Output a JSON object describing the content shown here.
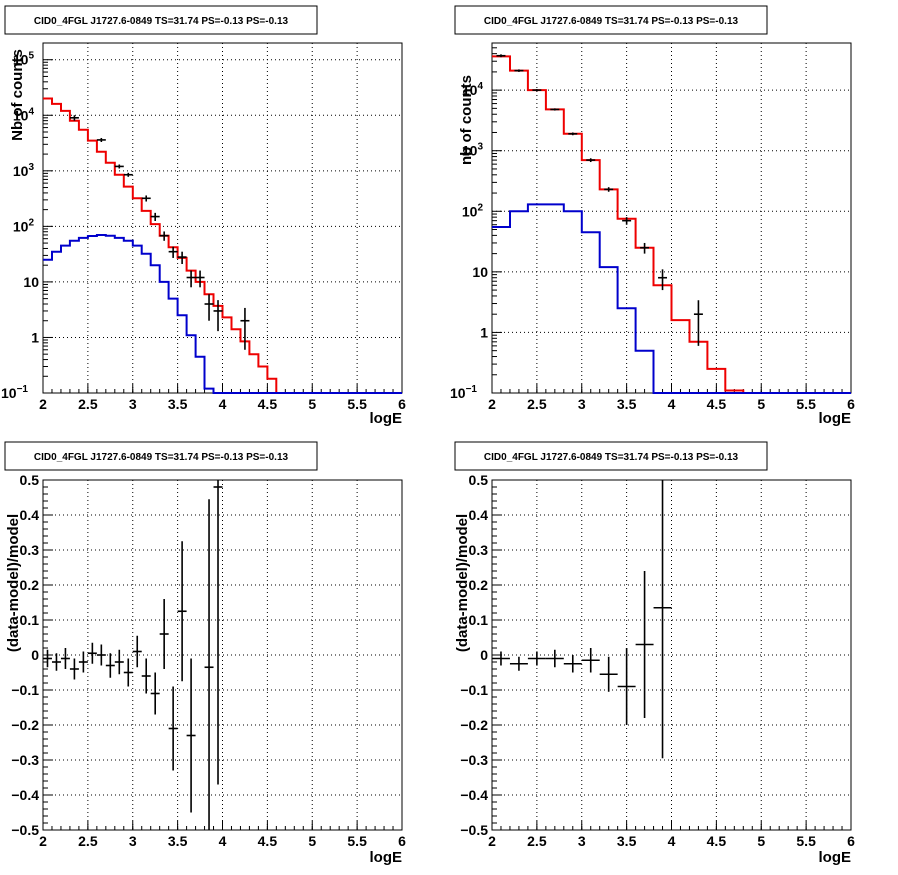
{
  "colors": {
    "data": "#000000",
    "model": "#ee0000",
    "component": "#0000cc",
    "grid": "#000000"
  },
  "chart_data": [
    {
      "type": "line",
      "title": "CID0_4FGL J1727.6-0849 TS=31.74 PS=-0.13 PS=-0.13",
      "xlabel": "logE",
      "ylabel": "Nb of counts",
      "xlim": [
        2,
        6
      ],
      "ylim": [
        0.1,
        200000
      ],
      "yscale": "log",
      "grid": true,
      "x_ticks": [
        "2",
        "2.5",
        "3",
        "3.5",
        "4",
        "4.5",
        "5",
        "5.5",
        "6"
      ],
      "y_ticks": [
        {
          "v": 0.1,
          "label": "10",
          "sup": "−1"
        },
        {
          "v": 1,
          "label": "1",
          "sup": ""
        },
        {
          "v": 10,
          "label": "10",
          "sup": ""
        },
        {
          "v": 100,
          "label": "10",
          "sup": "2"
        },
        {
          "v": 1000,
          "label": "10",
          "sup": "3"
        },
        {
          "v": 10000,
          "label": "10",
          "sup": "4"
        },
        {
          "v": 100000,
          "label": "10",
          "sup": "5"
        }
      ],
      "bin_edges": [
        2.0,
        2.1,
        2.2,
        2.3,
        2.4,
        2.5,
        2.6,
        2.7,
        2.8,
        2.9,
        3.0,
        3.1,
        3.2,
        3.3,
        3.4,
        3.5,
        3.6,
        3.7,
        3.8,
        3.9,
        4.0,
        4.1,
        4.2,
        4.3,
        4.4,
        4.5,
        4.6,
        4.7,
        4.8,
        4.9,
        5.0,
        5.1,
        5.2,
        5.3,
        5.4,
        5.5,
        5.6,
        5.7,
        5.8,
        5.9,
        6.0
      ],
      "series": [
        {
          "role": "model",
          "values": [
            20000,
            16000,
            12000,
            8000,
            5500,
            3500,
            2200,
            1400,
            850,
            520,
            320,
            190,
            110,
            68,
            42,
            27,
            16,
            10,
            6,
            3.7,
            2.3,
            1.4,
            0.85,
            0.5,
            0.3,
            0.18,
            0.1,
            0.1,
            0.1,
            0.1,
            0.1,
            0.1,
            0.1,
            0.1,
            0.1,
            0.1,
            0.1,
            0.1,
            0.1,
            0.1
          ]
        },
        {
          "role": "component",
          "values": [
            25,
            35,
            45,
            55,
            62,
            67,
            70,
            68,
            62,
            55,
            45,
            32,
            20,
            10,
            5,
            2.5,
            1.1,
            0.45,
            0.12,
            0.1,
            0.1,
            0.1,
            0.1,
            0.1,
            0.1,
            0.1,
            0.1,
            0.1,
            0.1,
            0.1,
            0.1,
            0.1,
            0.1,
            0.1,
            0.1,
            0.1,
            0.1,
            0.1,
            0.1,
            0.1
          ]
        }
      ],
      "points": [
        {
          "x": 2.35,
          "y": 9000,
          "lo": 8000,
          "hi": 10000
        },
        {
          "x": 2.65,
          "y": 3600,
          "lo": 3300,
          "hi": 3900
        },
        {
          "x": 2.85,
          "y": 1200,
          "lo": 1100,
          "hi": 1300
        },
        {
          "x": 2.95,
          "y": 850,
          "lo": 780,
          "hi": 920
        },
        {
          "x": 3.15,
          "y": 320,
          "lo": 280,
          "hi": 360
        },
        {
          "x": 3.25,
          "y": 150,
          "lo": 125,
          "hi": 175
        },
        {
          "x": 3.35,
          "y": 68,
          "lo": 55,
          "hi": 81
        },
        {
          "x": 3.45,
          "y": 35,
          "lo": 27,
          "hi": 43
        },
        {
          "x": 3.55,
          "y": 28,
          "lo": 21,
          "hi": 35
        },
        {
          "x": 3.65,
          "y": 12,
          "lo": 8,
          "hi": 16
        },
        {
          "x": 3.75,
          "y": 12,
          "lo": 8,
          "hi": 16
        },
        {
          "x": 3.85,
          "y": 4,
          "lo": 2,
          "hi": 6
        },
        {
          "x": 3.95,
          "y": 3,
          "lo": 1.3,
          "hi": 4.7
        },
        {
          "x": 4.25,
          "y": 2,
          "lo": 0.6,
          "hi": 3.4
        }
      ]
    },
    {
      "type": "line",
      "title": "CID0_4FGL J1727.6-0849 TS=31.74 PS=-0.13 PS=-0.13",
      "xlabel": "logE",
      "ylabel": "nb of counts",
      "xlim": [
        2,
        6
      ],
      "ylim": [
        0.1,
        60000
      ],
      "yscale": "log",
      "grid": true,
      "x_ticks": [
        "2",
        "2.5",
        "3",
        "3.5",
        "4",
        "4.5",
        "5",
        "5.5",
        "6"
      ],
      "y_ticks": [
        {
          "v": 0.1,
          "label": "10",
          "sup": "−1"
        },
        {
          "v": 1,
          "label": "1",
          "sup": ""
        },
        {
          "v": 10,
          "label": "10",
          "sup": ""
        },
        {
          "v": 100,
          "label": "10",
          "sup": "2"
        },
        {
          "v": 1000,
          "label": "10",
          "sup": "3"
        },
        {
          "v": 10000,
          "label": "10",
          "sup": "4"
        }
      ],
      "bin_edges": [
        2.0,
        2.2,
        2.4,
        2.6,
        2.8,
        3.0,
        3.2,
        3.4,
        3.6,
        3.8,
        4.0,
        4.2,
        4.4,
        4.6,
        4.8,
        5.0,
        5.2,
        5.4,
        5.6,
        5.8,
        6.0
      ],
      "series": [
        {
          "role": "model",
          "values": [
            36000,
            21000,
            10000,
            4800,
            1900,
            700,
            230,
            75,
            25,
            6,
            1.6,
            0.7,
            0.25,
            0.11,
            0.1,
            0.1,
            0.1,
            0.1,
            0.1,
            0.1
          ]
        },
        {
          "role": "component",
          "values": [
            55,
            100,
            130,
            130,
            100,
            45,
            12,
            2.5,
            0.5,
            0.1,
            0.1,
            0.1,
            0.1,
            0.1,
            0.1,
            0.1,
            0.1,
            0.1,
            0.1,
            0.1
          ]
        }
      ],
      "points": [
        {
          "x": 2.1,
          "y": 37000,
          "lo": 35000,
          "hi": 39000
        },
        {
          "x": 2.3,
          "y": 21000,
          "lo": 20000,
          "hi": 22000
        },
        {
          "x": 2.5,
          "y": 10000,
          "lo": 9600,
          "hi": 10400
        },
        {
          "x": 2.7,
          "y": 4800,
          "lo": 4600,
          "hi": 5000
        },
        {
          "x": 2.9,
          "y": 1900,
          "lo": 1800,
          "hi": 2000
        },
        {
          "x": 3.1,
          "y": 700,
          "lo": 650,
          "hi": 750
        },
        {
          "x": 3.3,
          "y": 230,
          "lo": 210,
          "hi": 250
        },
        {
          "x": 3.5,
          "y": 70,
          "lo": 60,
          "hi": 80
        },
        {
          "x": 3.7,
          "y": 25,
          "lo": 20,
          "hi": 30
        },
        {
          "x": 3.9,
          "y": 8,
          "lo": 5,
          "hi": 11
        },
        {
          "x": 4.3,
          "y": 2,
          "lo": 0.6,
          "hi": 3.4
        }
      ]
    },
    {
      "type": "scatter",
      "title": "CID0_4FGL J1727.6-0849 TS=31.74 PS=-0.13 PS=-0.13",
      "xlabel": "logE",
      "ylabel": "(data-model)/model",
      "xlim": [
        2,
        6
      ],
      "ylim": [
        -0.5,
        0.5
      ],
      "yscale": "linear",
      "grid": true,
      "x_ticks": [
        "2",
        "2.5",
        "3",
        "3.5",
        "4",
        "4.5",
        "5",
        "5.5",
        "6"
      ],
      "y_ticks": [
        {
          "v": -0.5,
          "label": "−0.5"
        },
        {
          "v": -0.4,
          "label": "−0.4"
        },
        {
          "v": -0.3,
          "label": "−0.3"
        },
        {
          "v": -0.2,
          "label": "−0.2"
        },
        {
          "v": -0.1,
          "label": "−0.1"
        },
        {
          "v": 0,
          "label": "0"
        },
        {
          "v": 0.1,
          "label": "0.1"
        },
        {
          "v": 0.2,
          "label": "0.2"
        },
        {
          "v": 0.3,
          "label": "0.3"
        },
        {
          "v": 0.4,
          "label": "0.4"
        },
        {
          "v": 0.5,
          "label": "0.5"
        }
      ],
      "xerr": 0.05,
      "points": [
        {
          "x": 2.05,
          "y": -0.01,
          "err": 0.025
        },
        {
          "x": 2.15,
          "y": -0.02,
          "err": 0.025
        },
        {
          "x": 2.25,
          "y": -0.01,
          "err": 0.03
        },
        {
          "x": 2.35,
          "y": -0.04,
          "err": 0.03
        },
        {
          "x": 2.45,
          "y": -0.02,
          "err": 0.03
        },
        {
          "x": 2.55,
          "y": 0.005,
          "err": 0.03
        },
        {
          "x": 2.65,
          "y": 0.0,
          "err": 0.03
        },
        {
          "x": 2.75,
          "y": -0.03,
          "err": 0.035
        },
        {
          "x": 2.85,
          "y": -0.02,
          "err": 0.035
        },
        {
          "x": 2.95,
          "y": -0.05,
          "err": 0.04
        },
        {
          "x": 3.05,
          "y": 0.01,
          "err": 0.045
        },
        {
          "x": 3.15,
          "y": -0.06,
          "err": 0.05
        },
        {
          "x": 3.25,
          "y": -0.11,
          "err": 0.06
        },
        {
          "x": 3.35,
          "y": 0.06,
          "err": 0.1
        },
        {
          "x": 3.45,
          "y": -0.21,
          "err": 0.12
        },
        {
          "x": 3.55,
          "y": 0.125,
          "err": 0.2
        },
        {
          "x": 3.65,
          "y": -0.23,
          "err": 0.22
        },
        {
          "x": 3.85,
          "y": -0.035,
          "err": 0.48
        },
        {
          "x": 3.95,
          "y": 0.48,
          "err": 0.85
        }
      ]
    },
    {
      "type": "scatter",
      "title": "CID0_4FGL J1727.6-0849 TS=31.74 PS=-0.13 PS=-0.13",
      "xlabel": "logE",
      "ylabel": "(data-model)/model",
      "xlim": [
        2,
        6
      ],
      "ylim": [
        -0.5,
        0.5
      ],
      "yscale": "linear",
      "grid": true,
      "x_ticks": [
        "2",
        "2.5",
        "3",
        "3.5",
        "4",
        "4.5",
        "5",
        "5.5",
        "6"
      ],
      "y_ticks": [
        {
          "v": -0.5,
          "label": "−0.5"
        },
        {
          "v": -0.4,
          "label": "−0.4"
        },
        {
          "v": -0.3,
          "label": "−0.3"
        },
        {
          "v": -0.2,
          "label": "−0.2"
        },
        {
          "v": -0.1,
          "label": "−0.1"
        },
        {
          "v": 0,
          "label": "0"
        },
        {
          "v": 0.1,
          "label": "0.1"
        },
        {
          "v": 0.2,
          "label": "0.2"
        },
        {
          "v": 0.3,
          "label": "0.3"
        },
        {
          "v": 0.4,
          "label": "0.4"
        },
        {
          "v": 0.5,
          "label": "0.5"
        }
      ],
      "xerr": 0.1,
      "points": [
        {
          "x": 2.1,
          "y": -0.01,
          "err": 0.02
        },
        {
          "x": 2.3,
          "y": -0.025,
          "err": 0.02
        },
        {
          "x": 2.5,
          "y": -0.01,
          "err": 0.02
        },
        {
          "x": 2.7,
          "y": -0.01,
          "err": 0.025
        },
        {
          "x": 2.9,
          "y": -0.025,
          "err": 0.025
        },
        {
          "x": 3.1,
          "y": -0.015,
          "err": 0.035
        },
        {
          "x": 3.3,
          "y": -0.055,
          "err": 0.05
        },
        {
          "x": 3.5,
          "y": -0.09,
          "err": 0.11
        },
        {
          "x": 3.7,
          "y": 0.03,
          "err": 0.21
        },
        {
          "x": 3.9,
          "y": 0.135,
          "err": 0.43
        }
      ]
    }
  ]
}
